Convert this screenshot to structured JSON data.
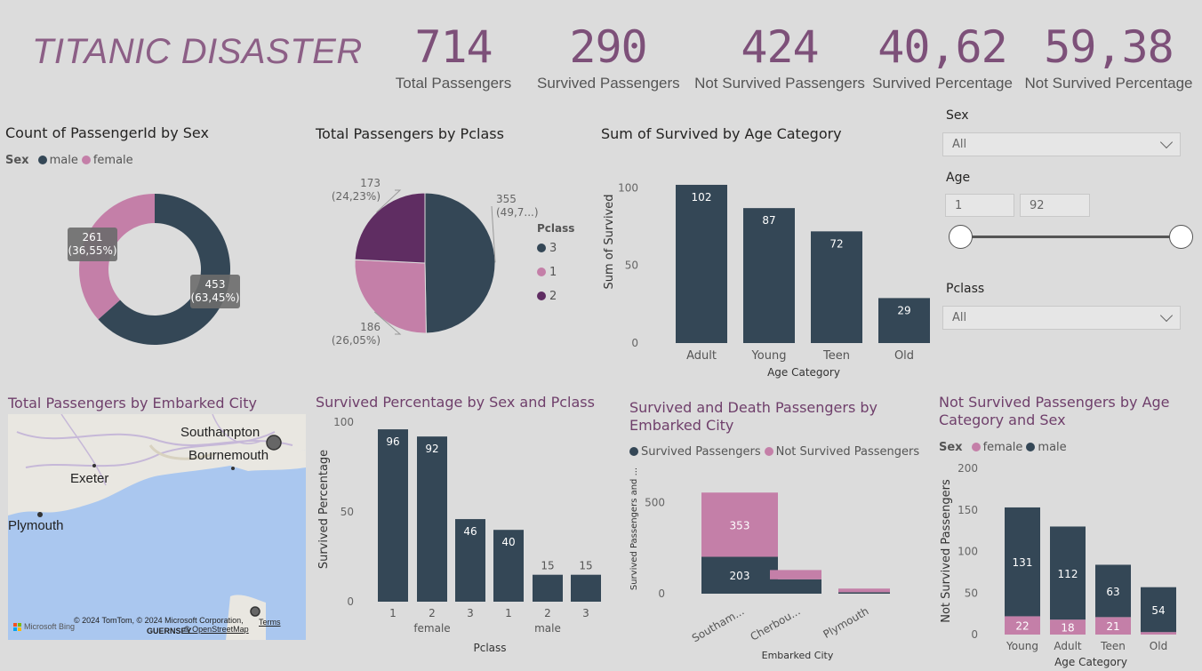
{
  "header": {
    "title": "TITANIC DISASTER",
    "kpis": [
      {
        "value": "714",
        "label": "Total Passengers"
      },
      {
        "value": "290",
        "label": "Survived Passengers"
      },
      {
        "value": "424",
        "label": "Not Survived Passengers"
      },
      {
        "value": "40,62",
        "label": "Survived Percentage"
      },
      {
        "value": "59,38",
        "label": "Not Survived Percentage"
      }
    ]
  },
  "colors": {
    "dark": "#344756",
    "pink": "#c47fa8",
    "purple": "#5f2d62",
    "accent": "#7d5079"
  },
  "filters": {
    "sex_label": "Sex",
    "sex_value": "All",
    "age_label": "Age",
    "age_min": "1",
    "age_max": "92",
    "pclass_label": "Pclass",
    "pclass_value": "All"
  },
  "map": {
    "title": "Total Passengers by Embarked City",
    "cities": [
      "Southampton",
      "Bournemouth",
      "Exeter",
      "Plymouth"
    ],
    "island": "GUERNSEY",
    "copyright": "© 2024 TomTom, © 2024 Microsoft Corporation,",
    "osm": "© OpenStreetMap",
    "terms": "Terms",
    "brand": "Microsoft Bing"
  },
  "chart_data": [
    {
      "type": "pie",
      "variant": "donut",
      "title": "Count of PassengerId by Sex",
      "legend_title": "Sex",
      "legend_placement": "top-left",
      "slices": [
        {
          "name": "male",
          "value": 453,
          "label": "453",
          "pct": "(63,45%)"
        },
        {
          "name": "female",
          "value": 261,
          "label": "261",
          "pct": "(36,55%)"
        }
      ]
    },
    {
      "type": "pie",
      "title": "Total Passengers by Pclass",
      "legend_title": "Pclass",
      "legend_placement": "right",
      "slices": [
        {
          "name": "3",
          "value": 355,
          "label": "355",
          "pct": "(49,7...)"
        },
        {
          "name": "1",
          "value": 186,
          "label": "186",
          "pct": "(26,05%)"
        },
        {
          "name": "2",
          "value": 173,
          "label": "173",
          "pct": "(24,23%)"
        }
      ]
    },
    {
      "type": "bar",
      "title": "Sum of Survived by Age Category",
      "xlabel": "Age Category",
      "ylabel": "Sum of Survived",
      "categories": [
        "Adult",
        "Young",
        "Teen",
        "Old"
      ],
      "values": [
        102,
        87,
        72,
        29
      ],
      "ylim": [
        0,
        110
      ],
      "yticks": [
        "0",
        "50",
        "100"
      ]
    },
    {
      "type": "bar",
      "title": "Survived Percentage by Sex and Pclass",
      "xlabel": "Pclass",
      "ylabel": "Survived Percentage",
      "categories": [
        "1",
        "2",
        "3",
        "1",
        "2",
        "3"
      ],
      "groups": [
        "female",
        "male"
      ],
      "values": [
        96,
        92,
        46,
        40,
        15,
        15
      ],
      "ylim": [
        0,
        100
      ],
      "yticks": [
        "0",
        "50",
        "100"
      ]
    },
    {
      "type": "bar",
      "stacked": true,
      "title": "Survived and Death Passengers by Embarked City",
      "xlabel": "Embarked City",
      "ylabel": "Survived Passengers and ...",
      "legend_placement": "top-left",
      "categories": [
        "Southam...",
        "Cherbou...",
        "Plymouth"
      ],
      "series": [
        {
          "name": "Survived Passengers",
          "values": [
            203,
            79,
            8
          ]
        },
        {
          "name": "Not Survived Passengers",
          "values": [
            353,
            51,
            20
          ]
        }
      ],
      "ylim": [
        0,
        650
      ],
      "yticks": [
        "0",
        "500"
      ]
    },
    {
      "type": "bar",
      "stacked": true,
      "title": "Not Survived Passengers by Age Category and Sex",
      "xlabel": "Age Category",
      "ylabel": "Not Survived Passengers",
      "legend_title": "Sex",
      "legend_placement": "top-left",
      "categories": [
        "Young",
        "Adult",
        "Teen",
        "Old"
      ],
      "series": [
        {
          "name": "female",
          "values": [
            22,
            18,
            21,
            3
          ]
        },
        {
          "name": "male",
          "values": [
            131,
            112,
            63,
            54
          ]
        }
      ],
      "ylim": [
        0,
        200
      ],
      "yticks": [
        "0",
        "50",
        "100",
        "150",
        "200"
      ]
    }
  ]
}
